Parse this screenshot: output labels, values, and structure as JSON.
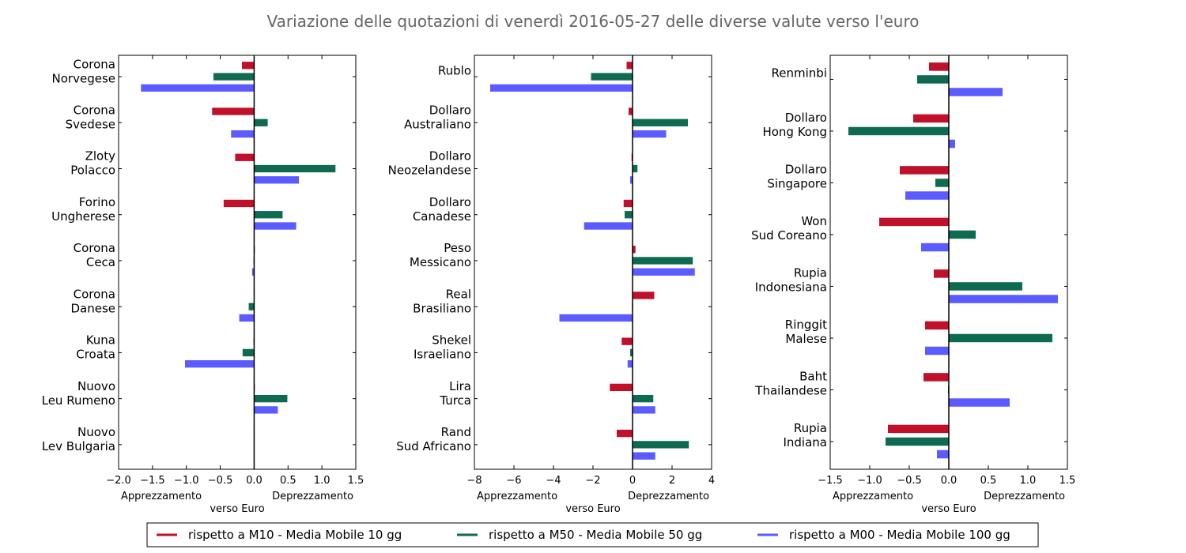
{
  "title": "Variazione delle quotazioni di venerdì 2016-05-27 delle diverse valute verso l'euro",
  "colors": {
    "m10": "#c0102a",
    "m50": "#0e6b52",
    "m00": "#5b5bff"
  },
  "legend": [
    {
      "label": "rispetto a M10 - Media Mobile 10 gg",
      "color": "#c0102a"
    },
    {
      "label": "rispetto a M50 - Media Mobile 50 gg",
      "color": "#0e6b52"
    },
    {
      "label": "rispetto a M00 - Media Mobile 100 gg",
      "color": "#5b5bff"
    }
  ],
  "chart_data": [
    {
      "type": "bar",
      "orientation": "horizontal",
      "categories": [
        [
          "Corona",
          "Norvegese"
        ],
        [
          "Corona",
          "Svedese"
        ],
        [
          "Zloty",
          "Polacco"
        ],
        [
          "Forino",
          "Ungherese"
        ],
        [
          "Corona",
          "Ceca"
        ],
        [
          "Corona",
          "Danese"
        ],
        [
          "Kuna",
          "Croata"
        ],
        [
          "Nuovo",
          "Leu Rumeno"
        ],
        [
          "Nuovo",
          "Lev Bulgaria"
        ]
      ],
      "series": [
        {
          "name": "rispetto a M10 - Media Mobile 10 gg",
          "values": [
            -0.18,
            -0.62,
            -0.28,
            -0.45,
            0.01,
            0.0,
            -0.01,
            0.01,
            0.0
          ]
        },
        {
          "name": "rispetto a M50 - Media Mobile 50 gg",
          "values": [
            -0.6,
            0.2,
            1.2,
            0.42,
            -0.01,
            -0.08,
            -0.17,
            0.49,
            0.0
          ]
        },
        {
          "name": "rispetto a M00 - Media Mobile 100 gg",
          "values": [
            -1.67,
            -0.34,
            0.66,
            0.62,
            -0.03,
            -0.22,
            -1.02,
            0.35,
            0.0
          ]
        }
      ],
      "xlim": [
        -2.0,
        1.5
      ],
      "xticks": [
        -2.0,
        -1.5,
        -1.0,
        -0.5,
        0.0,
        0.5,
        1.0,
        1.5
      ],
      "xtick_labels": [
        "−2.0",
        "−1.5",
        "−1.0",
        "−0.5",
        "0.0",
        "0.5",
        "1.0",
        "1.5"
      ],
      "xlabel_left": "Apprezzamento",
      "xlabel_center": "verso Euro",
      "xlabel_right": "Deprezzamento"
    },
    {
      "type": "bar",
      "orientation": "horizontal",
      "categories": [
        [
          "Rublo"
        ],
        [
          "Dollaro",
          "Australiano"
        ],
        [
          "Dollaro",
          "Neozelandese"
        ],
        [
          "Dollaro",
          "Canadese"
        ],
        [
          "Peso",
          "Messicano"
        ],
        [
          "Real",
          "Brasiliano"
        ],
        [
          "Shekel",
          "Israeliano"
        ],
        [
          "Lira",
          "Turca"
        ],
        [
          "Rand",
          "Sud Africano"
        ]
      ],
      "series": [
        {
          "name": "rispetto a M10 - Media Mobile 10 gg",
          "values": [
            -0.3,
            -0.2,
            -0.05,
            -0.45,
            0.15,
            1.1,
            -0.55,
            -1.15,
            -0.8
          ]
        },
        {
          "name": "rispetto a M50 - Media Mobile 50 gg",
          "values": [
            -2.1,
            2.8,
            0.25,
            -0.4,
            3.05,
            -0.03,
            -0.12,
            1.05,
            2.85
          ]
        },
        {
          "name": "rispetto a M00 - Media Mobile 100 gg",
          "values": [
            -7.2,
            1.7,
            -0.12,
            -2.45,
            3.15,
            -3.7,
            -0.25,
            1.15,
            1.15
          ]
        }
      ],
      "xlim": [
        -8,
        4
      ],
      "xticks": [
        -8,
        -6,
        -4,
        -2,
        0,
        2,
        4
      ],
      "xtick_labels": [
        "−8",
        "−6",
        "−4",
        "−2",
        "0",
        "2",
        "4"
      ],
      "xlabel_left": "Apprezzamento",
      "xlabel_center": "verso Euro",
      "xlabel_right": "Deprezzamento"
    },
    {
      "type": "bar",
      "orientation": "horizontal",
      "categories": [
        [
          "Renminbi"
        ],
        [
          "Dollaro",
          "Hong Kong"
        ],
        [
          "Dollaro",
          "Singapore"
        ],
        [
          "Won",
          "Sud Coreano"
        ],
        [
          "Rupia",
          "Indonesiana"
        ],
        [
          "Ringgit",
          "Malese"
        ],
        [
          "Baht",
          "Thailandese"
        ],
        [
          "Rupia",
          "Indiana"
        ]
      ],
      "series": [
        {
          "name": "rispetto a M10 - Media Mobile 10 gg",
          "values": [
            -0.25,
            -0.45,
            -0.62,
            -0.88,
            -0.19,
            -0.3,
            -0.32,
            -0.77
          ]
        },
        {
          "name": "rispetto a M50 - Media Mobile 50 gg",
          "values": [
            -0.4,
            -1.27,
            -0.17,
            0.34,
            0.93,
            1.31,
            -0.01,
            -0.8
          ]
        },
        {
          "name": "rispetto a M00 - Media Mobile 100 gg",
          "values": [
            0.68,
            0.08,
            -0.55,
            -0.35,
            1.38,
            -0.3,
            0.77,
            -0.15
          ]
        }
      ],
      "xlim": [
        -1.5,
        1.5
      ],
      "xticks": [
        -1.5,
        -1.0,
        -0.5,
        0.0,
        0.5,
        1.0,
        1.5
      ],
      "xtick_labels": [
        "−1.5",
        "−1.0",
        "−0.5",
        "0.0",
        "0.5",
        "1.0",
        "1.5"
      ],
      "xlabel_left": "Apprezzamento",
      "xlabel_center": "verso Euro",
      "xlabel_right": "Deprezzamento"
    }
  ]
}
